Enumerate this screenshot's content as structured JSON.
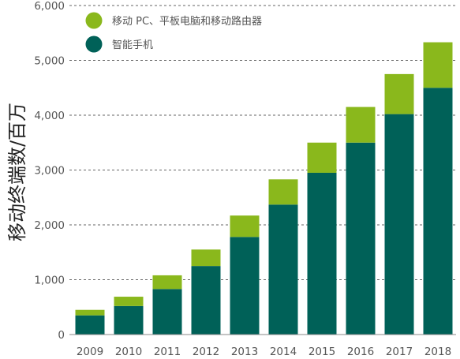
{
  "chart_data": {
    "type": "bar",
    "stacked": true,
    "ylabel": "移动终端数/百万",
    "xlabel": "",
    "ylim": [
      0,
      6000
    ],
    "yticks": [
      "0",
      "1,000",
      "2,000",
      "3,000",
      "4,000",
      "5,000",
      "6,000"
    ],
    "ytick_values": [
      0,
      1000,
      2000,
      3000,
      4000,
      5000,
      6000
    ],
    "grid": "horizontal dashed",
    "legend_position": "top-left",
    "categories": [
      "2009",
      "2010",
      "2011",
      "2012",
      "2013",
      "2014",
      "2015",
      "2016",
      "2017",
      "2018"
    ],
    "series": [
      {
        "name": "智能手机",
        "color": "#006158",
        "values": [
          350,
          520,
          830,
          1250,
          1780,
          2370,
          2950,
          3500,
          4020,
          4500
        ]
      },
      {
        "name": "移动 PC、平板电脑和移动路由器",
        "color": "#8ab81c",
        "values": [
          100,
          170,
          250,
          300,
          390,
          460,
          550,
          650,
          730,
          830
        ]
      }
    ]
  }
}
